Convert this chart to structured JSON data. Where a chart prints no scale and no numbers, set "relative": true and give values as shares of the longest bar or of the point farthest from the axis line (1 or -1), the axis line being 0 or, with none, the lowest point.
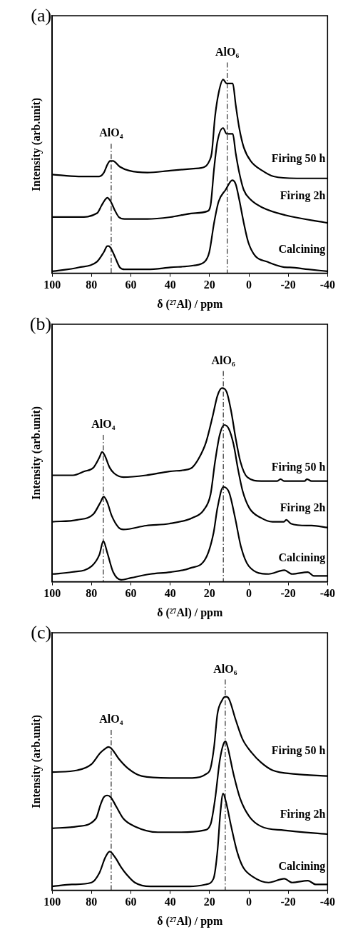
{
  "chart_data": [
    {
      "type": "line",
      "title": "(a)",
      "xlabel": "δ (²⁷Al) / ppm",
      "ylabel": "Intensity (arb.unit)",
      "relative": true,
      "xlim": [
        100,
        -40
      ],
      "xticks": [
        100,
        80,
        60,
        40,
        20,
        0,
        -20,
        -40
      ],
      "ref_lines": [
        {
          "axis": "x",
          "value": 70,
          "label": "AlO₄",
          "line_style": "dashed"
        },
        {
          "axis": "x",
          "value": 11,
          "label": "AlO₆",
          "line_style": "dashed"
        }
      ],
      "series": [
        {
          "name": "Firing 50 h",
          "color": "#000000",
          "x": [
            100,
            86.6,
            76.1,
            73.7,
            72,
            70.6,
            69.1,
            65.6,
            60.9,
            51.6,
            39.9,
            28.2,
            22.4,
            20.1,
            18.9,
            17.2,
            15.4,
            13.1,
            11.3,
            9.6,
            8.2,
            6.7,
            4.9,
            2.6,
            -0.9,
            -6.8,
            -12.6,
            -24.3,
            -40
          ],
          "values": [
            0.51,
            0.5,
            0.5,
            0.52,
            0.56,
            0.58,
            0.58,
            0.55,
            0.53,
            0.52,
            0.53,
            0.54,
            0.55,
            0.58,
            0.62,
            0.81,
            0.93,
            1,
            0.98,
            0.98,
            0.98,
            0.87,
            0.75,
            0.65,
            0.58,
            0.53,
            0.5,
            0.49,
            0.49
          ]
        },
        {
          "name": "Firing 2h",
          "color": "#000000",
          "x": [
            100,
            86.6,
            77.2,
            74.9,
            73.1,
            72,
            70.2,
            68.4,
            66.1,
            63.2,
            51.6,
            39.9,
            28.2,
            21.2,
            19.5,
            17.7,
            16,
            13.1,
            11.3,
            9.6,
            8.2,
            6.7,
            4.9,
            2.6,
            -0.9,
            -6.8,
            -18.5,
            -40
          ],
          "values": [
            0.29,
            0.29,
            0.31,
            0.35,
            0.38,
            0.39,
            0.37,
            0.33,
            0.29,
            0.28,
            0.28,
            0.29,
            0.31,
            0.32,
            0.35,
            0.54,
            0.68,
            0.75,
            0.72,
            0.72,
            0.72,
            0.62,
            0.52,
            0.43,
            0.38,
            0.34,
            0.3,
            0.26
          ]
        },
        {
          "name": "Calcining",
          "color": "#000000",
          "x": [
            100,
            86.6,
            77.2,
            73.7,
            72,
            71.2,
            69.7,
            67.9,
            65.6,
            63.2,
            51.6,
            39.9,
            28.2,
            22.4,
            20.1,
            17.7,
            15.4,
            11.9,
            8.4,
            6.7,
            4.9,
            2.6,
            0.3,
            -3.2,
            -9.1,
            -19.6,
            -20.8,
            -30.2,
            -40
          ],
          "values": [
            0.01,
            0.03,
            0.06,
            0.11,
            0.14,
            0.14,
            0.12,
            0.08,
            0.03,
            0.02,
            0.02,
            0.03,
            0.04,
            0.06,
            0.11,
            0.26,
            0.37,
            0.43,
            0.48,
            0.46,
            0.38,
            0.26,
            0.16,
            0.09,
            0.06,
            0.03,
            0.03,
            0.02,
            0.01
          ]
        }
      ]
    },
    {
      "type": "line",
      "title": "(b)",
      "xlabel": "δ (²⁷Al) / ppm",
      "ylabel": "Intensity (arb.unit)",
      "relative": true,
      "xlim": [
        100,
        -40
      ],
      "xticks": [
        100,
        80,
        60,
        40,
        20,
        0,
        -20,
        -40
      ],
      "ref_lines": [
        {
          "axis": "x",
          "value": 74,
          "label": "AlO₄",
          "line_style": "dashed"
        },
        {
          "axis": "x",
          "value": 13,
          "label": "AlO₆",
          "line_style": "dashed"
        }
      ],
      "series": [
        {
          "name": "Firing 50 h",
          "color": "#000000",
          "x": [
            100,
            89.5,
            83.7,
            79,
            76.1,
            74.6,
            73.2,
            70.8,
            68.5,
            63.8,
            52.2,
            40.5,
            31.2,
            28.8,
            25.3,
            21.8,
            18.3,
            16,
            13.7,
            11.3,
            9,
            6.7,
            4.3,
            0.8,
            -6.2,
            -14.4,
            -16.1,
            -17.9,
            -28.4,
            -29.5,
            -31.9,
            -40
          ],
          "values": [
            0.55,
            0.55,
            0.57,
            0.59,
            0.64,
            0.67,
            0.65,
            0.59,
            0.56,
            0.54,
            0.55,
            0.57,
            0.58,
            0.59,
            0.64,
            0.72,
            0.86,
            0.96,
            1,
            0.98,
            0.88,
            0.74,
            0.62,
            0.54,
            0.52,
            0.52,
            0.53,
            0.52,
            0.52,
            0.53,
            0.52,
            0.52
          ]
        },
        {
          "name": "Firing 2h",
          "color": "#000000",
          "x": [
            100,
            87.2,
            79,
            75.5,
            73.8,
            72,
            69.7,
            66.2,
            63.8,
            52.2,
            40.5,
            28.8,
            23,
            19.5,
            17.2,
            14.8,
            12.5,
            10.2,
            7.8,
            5.5,
            3.2,
            -0.3,
            -6.2,
            -12,
            -17.9,
            -19,
            -21.4,
            -29.5,
            -31.9,
            -40
          ],
          "values": [
            0.31,
            0.32,
            0.35,
            0.41,
            0.44,
            0.41,
            0.34,
            0.28,
            0.27,
            0.29,
            0.3,
            0.33,
            0.37,
            0.45,
            0.62,
            0.76,
            0.81,
            0.79,
            0.71,
            0.58,
            0.47,
            0.38,
            0.33,
            0.31,
            0.31,
            0.32,
            0.3,
            0.29,
            0.29,
            0.28
          ]
        },
        {
          "name": "Calcining",
          "color": "#000000",
          "x": [
            100,
            90,
            80,
            76,
            74,
            72,
            69,
            65,
            60,
            50,
            40,
            30,
            22,
            18,
            16,
            13,
            10,
            7,
            4,
            0,
            -10,
            -18,
            -22,
            -30,
            -33,
            -40
          ],
          "values": [
            0.04,
            0.05,
            0.08,
            0.14,
            0.21,
            0.15,
            0.05,
            0.01,
            0.02,
            0.04,
            0.05,
            0.07,
            0.12,
            0.25,
            0.38,
            0.49,
            0.46,
            0.33,
            0.18,
            0.08,
            0.04,
            0.06,
            0.04,
            0.05,
            0.03,
            0.03
          ]
        }
      ]
    },
    {
      "type": "line",
      "title": "(c)",
      "xlabel": "δ (²⁷Al) / ppm",
      "ylabel": "Intensity (arb.unit)",
      "relative": true,
      "xlim": [
        100,
        -40
      ],
      "xticks": [
        100,
        80,
        60,
        40,
        20,
        0,
        -20,
        -40
      ],
      "ref_lines": [
        {
          "axis": "x",
          "value": 70,
          "label": "AlO₄",
          "line_style": "dashed"
        },
        {
          "axis": "x",
          "value": 12,
          "label": "AlO₆",
          "line_style": "dashed"
        }
      ],
      "series": [
        {
          "name": "Firing 50 h",
          "color": "#000000",
          "x": [
            100,
            87.2,
            80.2,
            75.5,
            73.2,
            71.4,
            69.7,
            66.2,
            61.5,
            54.5,
            40.5,
            28.8,
            21.8,
            19.5,
            17.7,
            16,
            13.7,
            11.9,
            10.2,
            6.7,
            3.2,
            -1.5,
            -6.2,
            -12,
            -23.7,
            -40
          ],
          "values": [
            0.61,
            0.62,
            0.65,
            0.71,
            0.73,
            0.74,
            0.73,
            0.68,
            0.63,
            0.59,
            0.58,
            0.58,
            0.6,
            0.63,
            0.74,
            0.91,
            0.98,
            1,
            0.99,
            0.88,
            0.78,
            0.71,
            0.66,
            0.62,
            0.6,
            0.59
          ]
        },
        {
          "name": "Firing 2h",
          "color": "#000000",
          "x": [
            100,
            87.2,
            77.8,
            75.5,
            73.8,
            72,
            70.2,
            67.3,
            63.8,
            58,
            46.3,
            34.6,
            22.9,
            19.5,
            17.2,
            14.8,
            13.1,
            11.9,
            10.8,
            7.8,
            4.3,
            -0.3,
            -6.2,
            -17.9,
            -40
          ],
          "values": [
            0.32,
            0.33,
            0.37,
            0.44,
            0.48,
            0.49,
            0.48,
            0.43,
            0.37,
            0.33,
            0.3,
            0.3,
            0.31,
            0.34,
            0.47,
            0.67,
            0.75,
            0.77,
            0.74,
            0.6,
            0.47,
            0.38,
            0.33,
            0.31,
            0.29
          ]
        },
        {
          "name": "Calcining",
          "color": "#000000",
          "x": [
            100,
            90,
            80,
            76,
            73,
            70.8,
            68,
            65,
            62,
            58,
            50,
            40,
            30,
            22,
            18,
            16,
            14.5,
            13.1,
            11.5,
            9,
            6,
            3,
            -2,
            -10,
            -18,
            -22,
            -30,
            -34,
            -40
          ],
          "values": [
            0.02,
            0.03,
            0.04,
            0.09,
            0.17,
            0.2,
            0.17,
            0.12,
            0.08,
            0.04,
            0.02,
            0.02,
            0.02,
            0.03,
            0.06,
            0.2,
            0.4,
            0.5,
            0.45,
            0.33,
            0.2,
            0.12,
            0.07,
            0.04,
            0.06,
            0.04,
            0.05,
            0.03,
            0.03
          ]
        }
      ]
    }
  ]
}
